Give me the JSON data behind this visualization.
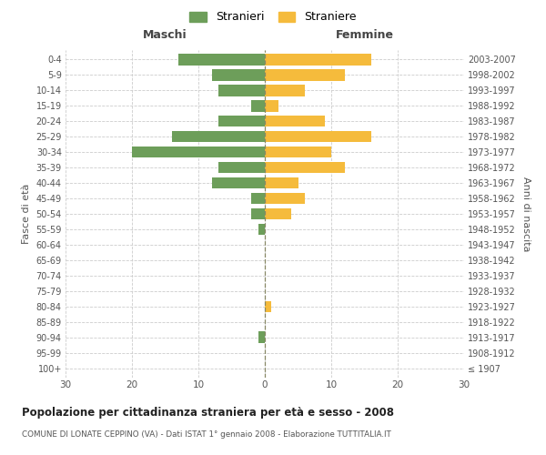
{
  "age_groups": [
    "100+",
    "95-99",
    "90-94",
    "85-89",
    "80-84",
    "75-79",
    "70-74",
    "65-69",
    "60-64",
    "55-59",
    "50-54",
    "45-49",
    "40-44",
    "35-39",
    "30-34",
    "25-29",
    "20-24",
    "15-19",
    "10-14",
    "5-9",
    "0-4"
  ],
  "birth_years": [
    "≤ 1907",
    "1908-1912",
    "1913-1917",
    "1918-1922",
    "1923-1927",
    "1928-1932",
    "1933-1937",
    "1938-1942",
    "1943-1947",
    "1948-1952",
    "1953-1957",
    "1958-1962",
    "1963-1967",
    "1968-1972",
    "1973-1977",
    "1978-1982",
    "1983-1987",
    "1988-1992",
    "1993-1997",
    "1998-2002",
    "2003-2007"
  ],
  "maschi": [
    0,
    0,
    1,
    0,
    0,
    0,
    0,
    0,
    0,
    1,
    2,
    2,
    8,
    7,
    20,
    14,
    7,
    2,
    7,
    8,
    13
  ],
  "femmine": [
    0,
    0,
    0,
    0,
    1,
    0,
    0,
    0,
    0,
    0,
    4,
    6,
    5,
    12,
    10,
    16,
    9,
    2,
    6,
    12,
    16
  ],
  "maschi_color": "#6d9e5a",
  "femmine_color": "#f5bb3c",
  "background_color": "#ffffff",
  "grid_color": "#cccccc",
  "title": "Popolazione per cittadinanza straniera per età e sesso - 2008",
  "subtitle": "COMUNE DI LONATE CEPPINO (VA) - Dati ISTAT 1° gennaio 2008 - Elaborazione TUTTITALIA.IT",
  "ylabel_left": "Fasce di età",
  "ylabel_right": "Anni di nascita",
  "xlabel_maschi": "Maschi",
  "xlabel_femmine": "Femmine",
  "legend_maschi": "Stranieri",
  "legend_femmine": "Straniere",
  "xlim": 30,
  "bar_height": 0.75
}
